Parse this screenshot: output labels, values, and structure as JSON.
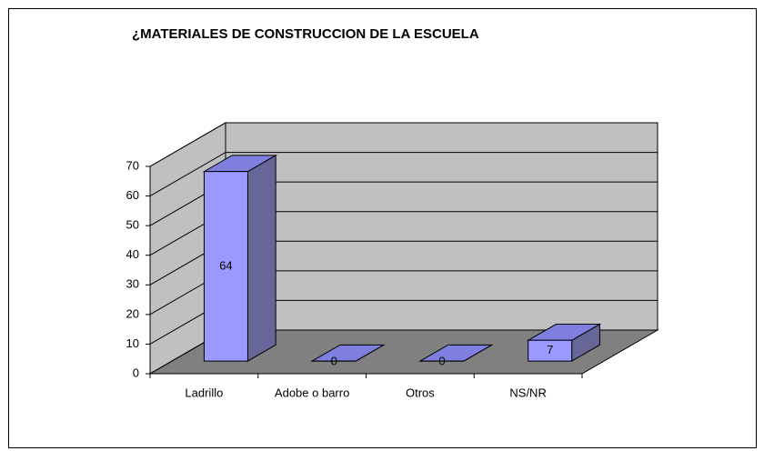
{
  "chart_data": {
    "type": "bar3d",
    "title": "¿MATERIALES DE CONSTRUCCION DE LA ESCUELA",
    "categories": [
      "Ladrillo",
      "Adobe o barro",
      "Otros",
      "NS/NR"
    ],
    "values": [
      64,
      0,
      0,
      7
    ],
    "color": "#9999ff",
    "ylim": [
      0,
      70
    ],
    "yticks": [
      0,
      10,
      20,
      30,
      40,
      50,
      60,
      70
    ],
    "grid": true
  }
}
